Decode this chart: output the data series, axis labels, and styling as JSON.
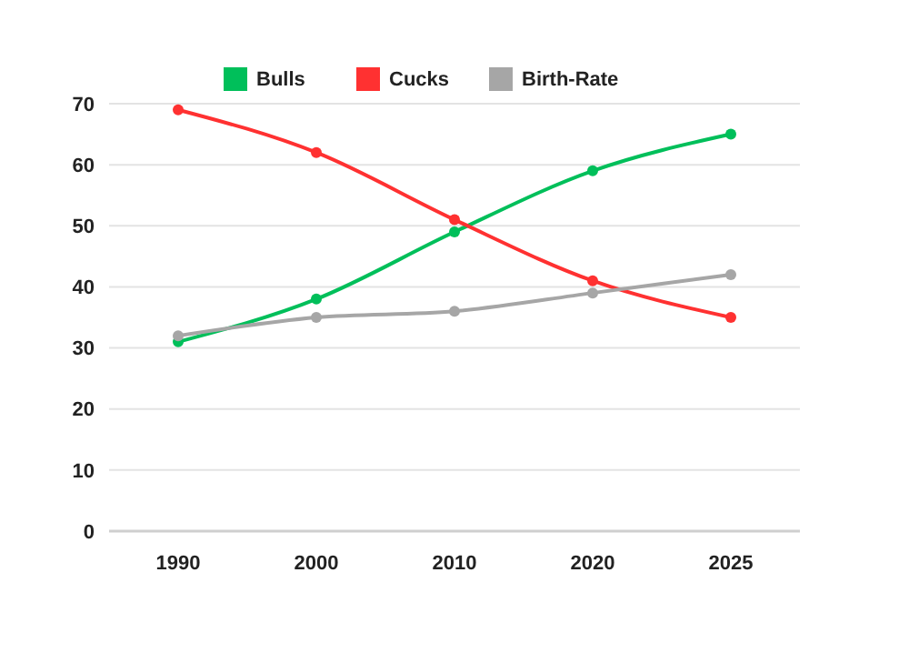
{
  "chart_data": {
    "type": "line",
    "categories": [
      "1990",
      "2000",
      "2010",
      "2020",
      "2025"
    ],
    "series": [
      {
        "name": "Bulls",
        "color": "#00bf5a",
        "values": [
          31,
          38,
          49,
          59,
          65
        ]
      },
      {
        "name": "Cucks",
        "color": "#ff3131",
        "values": [
          69,
          62,
          51,
          41,
          35
        ]
      },
      {
        "name": "Birth-Rate",
        "color": "#a6a6a6",
        "values": [
          32,
          35,
          36,
          39,
          42
        ]
      }
    ],
    "ylim": [
      0,
      70
    ],
    "yticks": [
      0,
      10,
      20,
      30,
      40,
      50,
      60,
      70
    ],
    "grid": "y",
    "legend": "top",
    "marker": "circle",
    "line_style": "solid"
  }
}
